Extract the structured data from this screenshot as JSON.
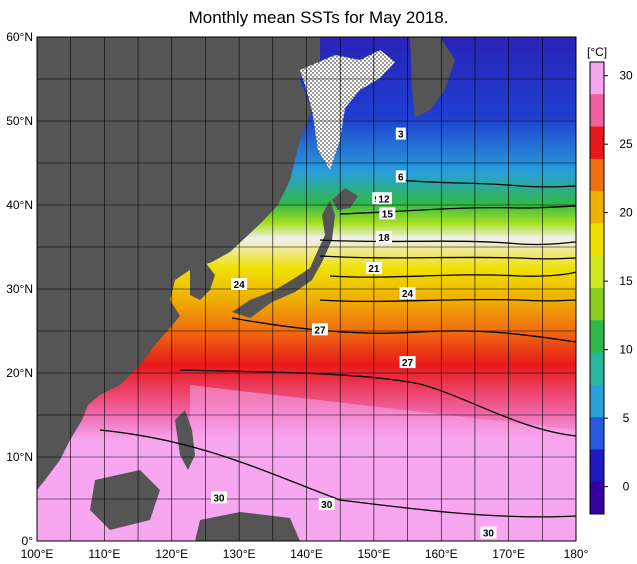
{
  "title": "Monthly mean SSTs for May 2018.",
  "colorbar": {
    "unit": "[°C]",
    "ticks": [
      "30",
      "25",
      "20",
      "15",
      "10",
      "5",
      "0"
    ],
    "colors": [
      "#f7a6f0",
      "#f060a0",
      "#e81818",
      "#f07010",
      "#f0b000",
      "#f0e000",
      "#d0e820",
      "#88d020",
      "#30b848",
      "#28b8a0",
      "#28a0d8",
      "#2858e0",
      "#2018c0",
      "#3000a0"
    ]
  },
  "axes": {
    "lat_labels": [
      "60°N",
      "50°N",
      "40°N",
      "30°N",
      "20°N",
      "10°N",
      "0°"
    ],
    "lon_labels": [
      "100°E",
      "110°E",
      "120°E",
      "130°E",
      "140°E",
      "150°E",
      "160°E",
      "170°E",
      "180°"
    ]
  },
  "contour_labels": [
    {
      "text": "3",
      "lat": 48.5,
      "lon": 154
    },
    {
      "text": "6",
      "lat": 43.4,
      "lon": 154
    },
    {
      "text": "9",
      "lat": 40.8,
      "lon": 150.5
    },
    {
      "text": "12",
      "lat": 40.8,
      "lon": 151.5
    },
    {
      "text": "15",
      "lat": 39,
      "lon": 152
    },
    {
      "text": "18",
      "lat": 36.2,
      "lon": 151.5
    },
    {
      "text": "21",
      "lat": 32.5,
      "lon": 150
    },
    {
      "text": "24",
      "lat": 30.6,
      "lon": 130
    },
    {
      "text": "24",
      "lat": 29.5,
      "lon": 155
    },
    {
      "text": "27",
      "lat": 25.2,
      "lon": 142
    },
    {
      "text": "27",
      "lat": 21.3,
      "lon": 155
    },
    {
      "text": "30",
      "lat": 5.2,
      "lon": 127
    },
    {
      "text": "30",
      "lat": 4.4,
      "lon": 143
    },
    {
      "text": "30",
      "lat": 1,
      "lon": 167
    }
  ],
  "colors": {
    "land": "#555555",
    "ocean_warm": "#f7a6f0",
    "ocean_cold": "#1a1ac8"
  }
}
